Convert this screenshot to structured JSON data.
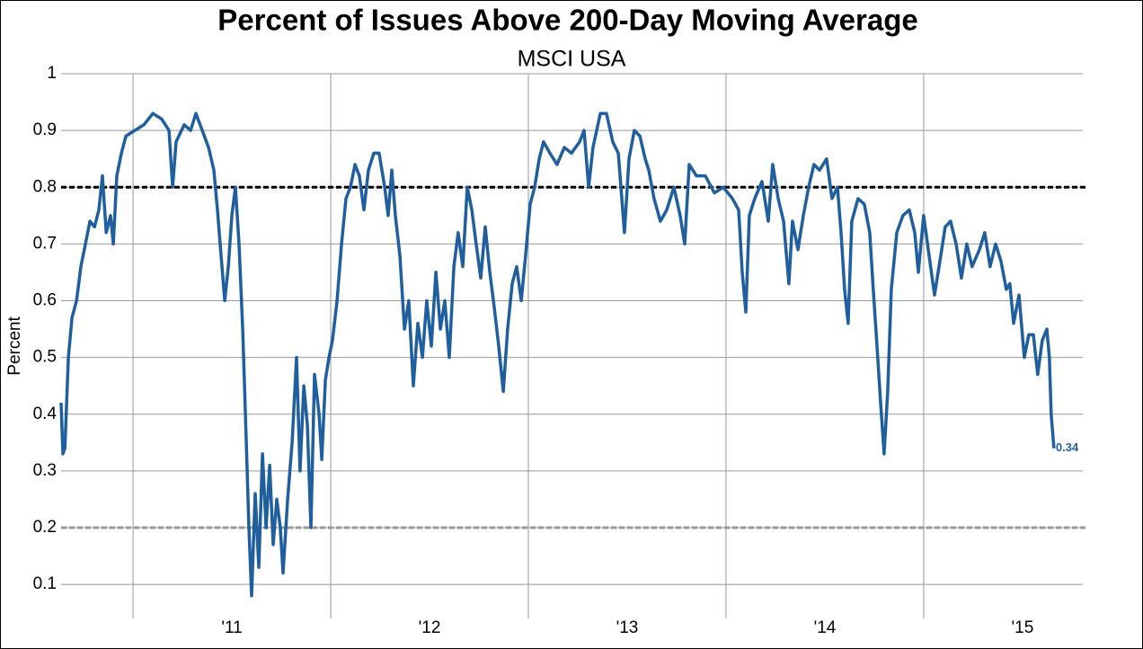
{
  "chart_data": {
    "type": "line",
    "title": "Percent of Issues Above 200-Day Moving Average",
    "subtitle": "MSCI USA",
    "y_label": "Percent",
    "xlim": [
      2010.136,
      2015.305
    ],
    "xticks": [
      {
        "value": 2011,
        "label": "'11"
      },
      {
        "value": 2012,
        "label": "'12"
      },
      {
        "value": 2013,
        "label": "'13"
      },
      {
        "value": 2014,
        "label": "'14"
      },
      {
        "value": 2015,
        "label": "'15"
      }
    ],
    "xgrid": [
      2010.5,
      2011.5,
      2012.5,
      2013.5,
      2014.5
    ],
    "ylim": [
      0.04,
      1
    ],
    "yticks": [
      0.1,
      0.2,
      0.3,
      0.4,
      0.5,
      0.6,
      0.7,
      0.8,
      0.9,
      1
    ],
    "grid": true,
    "reference_lines": [
      {
        "value": 0.8,
        "color": "#000000"
      },
      {
        "value": 0.2,
        "color": "#999999"
      }
    ],
    "series": [
      {
        "color": "#1f5f9f",
        "x": [
          2010.136,
          2010.145,
          2010.155,
          2010.173,
          2010.191,
          2010.214,
          2010.236,
          2010.259,
          2010.282,
          2010.305,
          2010.327,
          2010.345,
          2010.364,
          2010.386,
          2010.4,
          2010.418,
          2010.441,
          2010.464,
          2010.509,
          2010.555,
          2010.6,
          2010.645,
          2010.682,
          2010.7,
          2010.718,
          2010.759,
          2010.791,
          2010.818,
          2010.85,
          2010.882,
          2010.909,
          2010.927,
          2010.945,
          2010.964,
          2010.982,
          2011.0,
          2011.018,
          2011.036,
          2011.055,
          2011.073,
          2011.086,
          2011.1,
          2011.118,
          2011.136,
          2011.155,
          2011.173,
          2011.191,
          2011.209,
          2011.227,
          2011.245,
          2011.259,
          2011.282,
          2011.305,
          2011.327,
          2011.345,
          2011.364,
          2011.382,
          2011.4,
          2011.418,
          2011.441,
          2011.455,
          2011.473,
          2011.491,
          2011.509,
          2011.532,
          2011.555,
          2011.577,
          2011.6,
          2011.623,
          2011.645,
          2011.668,
          2011.691,
          2011.718,
          2011.745,
          2011.773,
          2011.791,
          2011.809,
          2011.827,
          2011.85,
          2011.873,
          2011.895,
          2011.918,
          2011.941,
          2011.964,
          2011.986,
          2012.009,
          2012.032,
          2012.055,
          2012.077,
          2012.1,
          2012.123,
          2012.145,
          2012.168,
          2012.191,
          2012.214,
          2012.236,
          2012.259,
          2012.282,
          2012.305,
          2012.327,
          2012.35,
          2012.373,
          2012.395,
          2012.418,
          2012.441,
          2012.464,
          2012.486,
          2012.509,
          2012.532,
          2012.555,
          2012.577,
          2012.609,
          2012.645,
          2012.682,
          2012.718,
          2012.759,
          2012.782,
          2012.805,
          2012.827,
          2012.864,
          2012.895,
          2012.927,
          2012.955,
          2012.973,
          2012.986,
          2013.009,
          2013.036,
          2013.064,
          2013.091,
          2013.109,
          2013.136,
          2013.168,
          2013.2,
          2013.236,
          2013.268,
          2013.291,
          2013.314,
          2013.35,
          2013.395,
          2013.441,
          2013.486,
          2013.532,
          2013.564,
          2013.582,
          2013.6,
          2013.618,
          2013.645,
          2013.682,
          2013.714,
          2013.736,
          2013.764,
          2013.791,
          2013.818,
          2013.836,
          2013.864,
          2013.891,
          2013.918,
          2013.945,
          2013.973,
          2014.009,
          2014.036,
          2014.064,
          2014.082,
          2014.1,
          2014.118,
          2014.136,
          2014.168,
          2014.2,
          2014.227,
          2014.245,
          2014.264,
          2014.282,
          2014.3,
          2014.318,
          2014.336,
          2014.364,
          2014.395,
          2014.427,
          2014.455,
          2014.473,
          2014.5,
          2014.527,
          2014.555,
          2014.582,
          2014.609,
          2014.636,
          2014.664,
          2014.691,
          2014.718,
          2014.745,
          2014.782,
          2014.809,
          2014.836,
          2014.864,
          2014.891,
          2014.918,
          2014.936,
          2014.955,
          2014.982,
          2015.009,
          2015.032,
          2015.055,
          2015.077,
          2015.1,
          2015.123,
          2015.136,
          2015.145,
          2015.159
        ],
        "values": [
          0.42,
          0.33,
          0.34,
          0.5,
          0.57,
          0.6,
          0.66,
          0.7,
          0.74,
          0.73,
          0.76,
          0.82,
          0.72,
          0.75,
          0.7,
          0.82,
          0.86,
          0.89,
          0.9,
          0.91,
          0.93,
          0.92,
          0.9,
          0.8,
          0.88,
          0.91,
          0.9,
          0.93,
          0.9,
          0.87,
          0.83,
          0.76,
          0.68,
          0.6,
          0.66,
          0.75,
          0.8,
          0.7,
          0.55,
          0.35,
          0.2,
          0.08,
          0.26,
          0.13,
          0.33,
          0.2,
          0.31,
          0.17,
          0.25,
          0.2,
          0.12,
          0.25,
          0.35,
          0.5,
          0.3,
          0.45,
          0.38,
          0.2,
          0.47,
          0.4,
          0.32,
          0.46,
          0.5,
          0.53,
          0.6,
          0.7,
          0.78,
          0.8,
          0.84,
          0.82,
          0.76,
          0.83,
          0.86,
          0.86,
          0.8,
          0.75,
          0.83,
          0.75,
          0.68,
          0.55,
          0.6,
          0.45,
          0.56,
          0.5,
          0.6,
          0.52,
          0.65,
          0.55,
          0.6,
          0.5,
          0.66,
          0.72,
          0.66,
          0.8,
          0.76,
          0.7,
          0.64,
          0.73,
          0.65,
          0.59,
          0.52,
          0.44,
          0.55,
          0.63,
          0.66,
          0.6,
          0.68,
          0.77,
          0.8,
          0.85,
          0.88,
          0.86,
          0.84,
          0.87,
          0.86,
          0.88,
          0.9,
          0.8,
          0.87,
          0.93,
          0.93,
          0.88,
          0.86,
          0.78,
          0.72,
          0.85,
          0.9,
          0.89,
          0.85,
          0.83,
          0.78,
          0.74,
          0.76,
          0.8,
          0.75,
          0.7,
          0.84,
          0.82,
          0.82,
          0.79,
          0.8,
          0.78,
          0.76,
          0.65,
          0.58,
          0.75,
          0.78,
          0.81,
          0.74,
          0.84,
          0.78,
          0.74,
          0.63,
          0.74,
          0.69,
          0.75,
          0.8,
          0.84,
          0.83,
          0.85,
          0.78,
          0.8,
          0.72,
          0.62,
          0.56,
          0.74,
          0.78,
          0.77,
          0.72,
          0.62,
          0.52,
          0.42,
          0.33,
          0.44,
          0.62,
          0.72,
          0.75,
          0.76,
          0.72,
          0.65,
          0.75,
          0.68,
          0.61,
          0.67,
          0.73,
          0.74,
          0.7,
          0.64,
          0.7,
          0.66,
          0.69,
          0.72,
          0.66,
          0.7,
          0.67,
          0.62,
          0.63,
          0.56,
          0.61,
          0.5,
          0.54,
          0.54,
          0.47,
          0.53,
          0.55,
          0.5,
          0.4,
          0.34
        ],
        "last_value_label": "0.34"
      }
    ]
  }
}
